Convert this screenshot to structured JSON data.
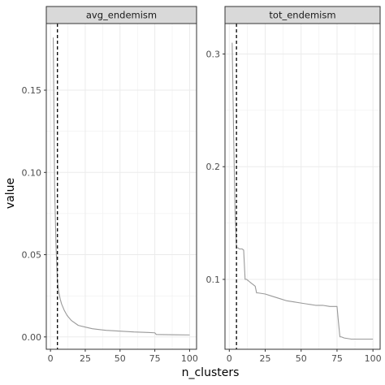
{
  "chart_data": {
    "type": "line",
    "xlabel": "n_clusters",
    "ylabel": "value",
    "grid": true,
    "colors": {
      "line": "#999999",
      "vline": "#000000",
      "strip_bg": "#d9d9d9",
      "grid_major": "#ebebeb"
    },
    "panels": [
      {
        "strip": "avg_endemism",
        "xlim": [
          -3,
          105
        ],
        "ylim": [
          -0.0075,
          0.1905
        ],
        "x_ticks": [
          0,
          25,
          50,
          75,
          100
        ],
        "x_tick_labels": [
          "0",
          "25",
          "50",
          "75",
          "100"
        ],
        "y_ticks": [
          0.0,
          0.05,
          0.1,
          0.15
        ],
        "y_tick_labels": [
          "0.00",
          "0.05",
          "0.10",
          "0.15"
        ],
        "vline_x": 5,
        "series": [
          {
            "x": [
              2,
              3,
              4,
              5,
              6,
              7,
              8,
              10,
              12,
              15,
              20,
              25,
              30,
              40,
              50,
              60,
              70,
              75,
              76,
              80,
              90,
              100
            ],
            "y": [
              0.182,
              0.09,
              0.055,
              0.034,
              0.027,
              0.023,
              0.02,
              0.016,
              0.013,
              0.01,
              0.007,
              0.006,
              0.005,
              0.004,
              0.0035,
              0.003,
              0.0027,
              0.0025,
              0.0015,
              0.0014,
              0.0013,
              0.0012
            ]
          }
        ]
      },
      {
        "strip": "tot_endemism",
        "xlim": [
          -3,
          105
        ],
        "ylim": [
          0.038,
          0.327
        ],
        "x_ticks": [
          0,
          25,
          50,
          75,
          100
        ],
        "x_tick_labels": [
          "0",
          "25",
          "50",
          "75",
          "100"
        ],
        "y_ticks": [
          0.1,
          0.2,
          0.3
        ],
        "y_tick_labels": [
          "0.1",
          "0.2",
          "0.3"
        ],
        "vline_x": 5,
        "series": [
          {
            "x": [
              2,
              3,
              4,
              5,
              6,
              7,
              8,
              9,
              10,
              11,
              12,
              13,
              14,
              15,
              16,
              17,
              18,
              19,
              20,
              25,
              30,
              35,
              40,
              45,
              50,
              55,
              60,
              65,
              70,
              75,
              76,
              77,
              78,
              80,
              85,
              90,
              95,
              100
            ],
            "y": [
              0.31,
              0.23,
              0.16,
              0.128,
              0.128,
              0.127,
              0.127,
              0.127,
              0.126,
              0.1,
              0.1,
              0.099,
              0.098,
              0.097,
              0.096,
              0.095,
              0.094,
              0.088,
              0.088,
              0.087,
              0.085,
              0.083,
              0.081,
              0.08,
              0.079,
              0.078,
              0.077,
              0.077,
              0.076,
              0.076,
              0.062,
              0.049,
              0.049,
              0.048,
              0.047,
              0.047,
              0.047,
              0.047
            ]
          }
        ]
      }
    ]
  }
}
